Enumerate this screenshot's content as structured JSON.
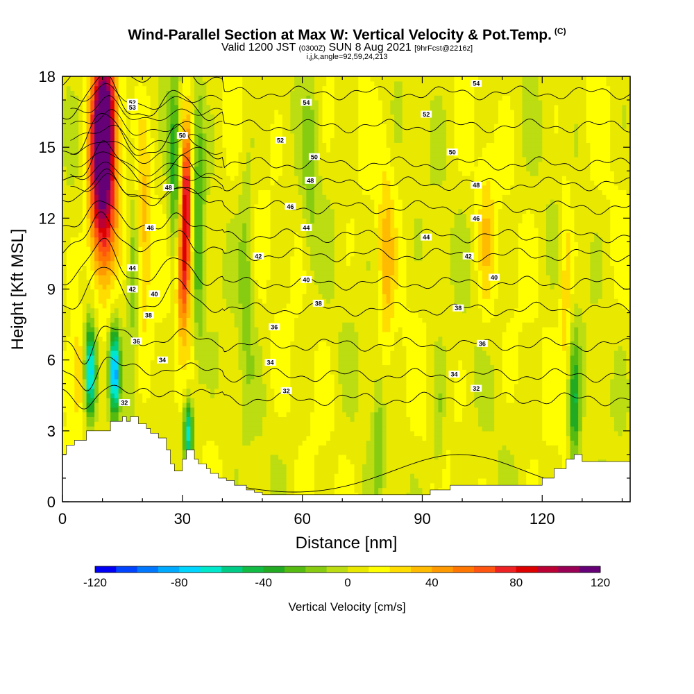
{
  "chart_data": {
    "type": "heatmap",
    "title": "Wind-Parallel Section at Max W: Vertical Velocity & Pot.Temp.",
    "title_mark": "(C)",
    "subtitle_main_a": "Valid 1200 JST",
    "subtitle_small_a": "(0300Z)",
    "subtitle_main_b": "SUN 8 Aug 2021",
    "subtitle_small_b": "[9hrFcst@2216z]",
    "subtitle_line3": "i,j,k,angle=92,59,24,213",
    "xlabel": "Distance [nm]",
    "ylabel": "Height [Kft MSL]",
    "xlim": [
      0,
      142
    ],
    "ylim": [
      0,
      18
    ],
    "x_ticks": [
      0,
      30,
      60,
      90,
      120
    ],
    "y_ticks": [
      0,
      3,
      6,
      9,
      12,
      15,
      18
    ],
    "colorbar": {
      "title": "Vertical Velocity [cm/s]",
      "min": -120,
      "max": 120,
      "step": 10,
      "labels": [
        "-120",
        "-80",
        "-40",
        "0",
        "40",
        "80",
        "120"
      ],
      "label_values": [
        -120,
        -80,
        -40,
        0,
        40,
        80,
        120
      ],
      "colors": [
        "#0000f5",
        "#0044ff",
        "#0077ff",
        "#00aaff",
        "#00d5ff",
        "#00e8cc",
        "#00cc88",
        "#11bb44",
        "#22aa22",
        "#55bb11",
        "#88cc11",
        "#bbdd11",
        "#e8e800",
        "#ffff00",
        "#ffdd00",
        "#ffbb00",
        "#ff9900",
        "#ff7700",
        "#ff5511",
        "#ee2222",
        "#dd0000",
        "#bb0033",
        "#990055",
        "#660077"
      ]
    },
    "updrafts": [
      {
        "x": 10,
        "z": 13.5,
        "w": 115,
        "sx": 3.2,
        "sz": 4.0
      },
      {
        "x": 10.5,
        "z": 16.5,
        "w": 85,
        "sx": 2.5,
        "sz": 2.5
      },
      {
        "x": 31,
        "z": 12.5,
        "w": 85,
        "sx": 1.5,
        "sz": 3.5
      },
      {
        "x": 30,
        "z": 9.5,
        "w": 45,
        "sx": 1.5,
        "sz": 2.5
      },
      {
        "x": 4,
        "z": 5.5,
        "w": 30,
        "sx": 2,
        "sz": 2
      },
      {
        "x": 81,
        "z": 10,
        "w": 22,
        "sx": 2,
        "sz": 5
      },
      {
        "x": 106,
        "z": 11,
        "w": 18,
        "sx": 2,
        "sz": 4
      },
      {
        "x": 126,
        "z": 9,
        "w": 22,
        "sx": 1.5,
        "sz": 5
      },
      {
        "x": 20,
        "z": 11,
        "w": 30,
        "sx": 2,
        "sz": 4
      }
    ],
    "downdrafts": [
      {
        "x": 7,
        "z": 5.5,
        "w": -95,
        "sx": 1.5,
        "sz": 2.0
      },
      {
        "x": 13,
        "z": 5.5,
        "w": -90,
        "sx": 1.2,
        "sz": 1.8
      },
      {
        "x": 31.5,
        "z": 3.0,
        "w": -75,
        "sx": 1.2,
        "sz": 1.5
      },
      {
        "x": 28,
        "z": 14,
        "w": -40,
        "sx": 1.5,
        "sz": 4
      },
      {
        "x": 34,
        "z": 12,
        "w": -35,
        "sx": 1.5,
        "sz": 6
      },
      {
        "x": 18,
        "z": 10,
        "w": -30,
        "sx": 1.5,
        "sz": 4
      },
      {
        "x": 46,
        "z": 10,
        "w": -22,
        "sx": 2,
        "sz": 5
      },
      {
        "x": 62,
        "z": 14,
        "w": -18,
        "sx": 2,
        "sz": 4
      },
      {
        "x": 128,
        "z": 4,
        "w": -45,
        "sx": 1.5,
        "sz": 3
      },
      {
        "x": 79,
        "z": 3,
        "w": -20,
        "sx": 1.5,
        "sz": 3
      },
      {
        "x": 94,
        "z": 3,
        "w": -18,
        "sx": 1.5,
        "sz": 3
      }
    ],
    "terrain": {
      "x": [
        0,
        1,
        1,
        3,
        3,
        6,
        6,
        12,
        12,
        15,
        15,
        16,
        16,
        17,
        17,
        19,
        19,
        21,
        21,
        22,
        22,
        24,
        24,
        26,
        26,
        27,
        27,
        28,
        28,
        30,
        30,
        31,
        31,
        33,
        33,
        34,
        34,
        36,
        36,
        37,
        37,
        39,
        39,
        41,
        41,
        43,
        43,
        46,
        46,
        48,
        48,
        50,
        50,
        51,
        51,
        71,
        71,
        75,
        75,
        81,
        81,
        84,
        84,
        92,
        92,
        97,
        97,
        120,
        120,
        123,
        123,
        126,
        126,
        128,
        128,
        130,
        130,
        131,
        131,
        133,
        133,
        142
      ],
      "z": [
        2.0,
        2.0,
        2.4,
        2.4,
        2.6,
        2.6,
        3.0,
        3.0,
        3.4,
        3.4,
        3.6,
        3.6,
        3.4,
        3.4,
        3.6,
        3.6,
        3.3,
        3.3,
        3.1,
        3.1,
        2.9,
        2.9,
        2.7,
        2.7,
        2.2,
        2.2,
        1.6,
        1.6,
        1.3,
        1.3,
        1.8,
        1.8,
        2.2,
        2.2,
        1.8,
        1.8,
        1.6,
        1.6,
        1.4,
        1.4,
        1.2,
        1.2,
        1.0,
        1.0,
        0.9,
        0.9,
        0.7,
        0.7,
        0.5,
        0.5,
        0.4,
        0.4,
        0.3,
        0.3,
        0.3,
        0.3,
        0.3,
        0.3,
        0.3,
        0.3,
        0.3,
        0.3,
        0.3,
        0.3,
        0.5,
        0.5,
        0.7,
        0.7,
        1.0,
        1.0,
        1.4,
        1.4,
        1.8,
        1.8,
        2.0,
        2.0,
        1.7,
        1.7,
        1.7,
        1.7,
        1.7,
        1.7
      ]
    },
    "theta_contours": {
      "levels": [
        30,
        32,
        34,
        36,
        38,
        40,
        42,
        44,
        46,
        48,
        50,
        52,
        54
      ],
      "level_heights": [
        1.2,
        4.5,
        5.5,
        6.8,
        8.3,
        9.4,
        10.6,
        11.4,
        12.6,
        13.6,
        14.8,
        16.4,
        17.8
      ],
      "labels": [
        {
          "text": "32",
          "x": 15.5,
          "z": 4.2
        },
        {
          "text": "32",
          "x": 56,
          "z": 4.7
        },
        {
          "text": "32",
          "x": 103.5,
          "z": 4.8
        },
        {
          "text": "34",
          "x": 25,
          "z": 6.0
        },
        {
          "text": "34",
          "x": 52,
          "z": 5.9
        },
        {
          "text": "34",
          "x": 98,
          "z": 5.4
        },
        {
          "text": "36",
          "x": 18.5,
          "z": 6.8
        },
        {
          "text": "36",
          "x": 53,
          "z": 7.4
        },
        {
          "text": "36",
          "x": 105,
          "z": 6.7
        },
        {
          "text": "38",
          "x": 21.5,
          "z": 7.9
        },
        {
          "text": "38",
          "x": 64,
          "z": 8.4
        },
        {
          "text": "38",
          "x": 99,
          "z": 8.2
        },
        {
          "text": "40",
          "x": 23,
          "z": 8.8
        },
        {
          "text": "40",
          "x": 61,
          "z": 9.4
        },
        {
          "text": "40",
          "x": 108,
          "z": 9.5
        },
        {
          "text": "42",
          "x": 17.5,
          "z": 9.0
        },
        {
          "text": "42",
          "x": 49,
          "z": 10.4
        },
        {
          "text": "42",
          "x": 101.5,
          "z": 10.4
        },
        {
          "text": "44",
          "x": 17.5,
          "z": 9.9
        },
        {
          "text": "44",
          "x": 61,
          "z": 11.6
        },
        {
          "text": "44",
          "x": 91,
          "z": 11.2
        },
        {
          "text": "46",
          "x": 22,
          "z": 11.6
        },
        {
          "text": "46",
          "x": 57,
          "z": 12.5
        },
        {
          "text": "46",
          "x": 103.5,
          "z": 12.0
        },
        {
          "text": "48",
          "x": 26.5,
          "z": 13.3
        },
        {
          "text": "48",
          "x": 62,
          "z": 13.6
        },
        {
          "text": "48",
          "x": 103.5,
          "z": 13.4
        },
        {
          "text": "50",
          "x": 30,
          "z": 15.5
        },
        {
          "text": "50",
          "x": 63,
          "z": 14.6
        },
        {
          "text": "50",
          "x": 97.5,
          "z": 14.8
        },
        {
          "text": "52",
          "x": 17.5,
          "z": 16.9
        },
        {
          "text": "52",
          "x": 54.5,
          "z": 15.3
        },
        {
          "text": "52",
          "x": 91,
          "z": 16.4
        },
        {
          "text": "53",
          "x": 17.5,
          "z": 16.7
        },
        {
          "text": "54",
          "x": 61,
          "z": 16.9
        },
        {
          "text": "54",
          "x": 103.5,
          "z": 17.7
        }
      ]
    }
  }
}
